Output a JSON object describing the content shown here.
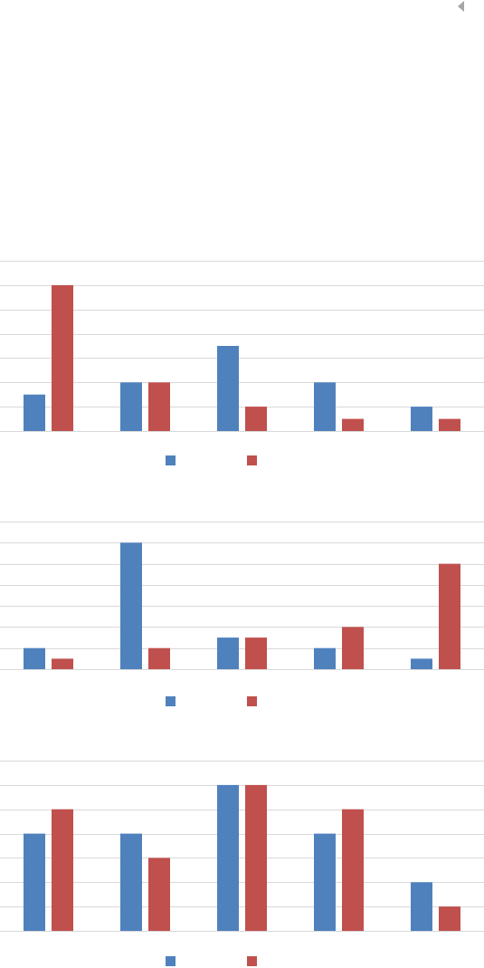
{
  "ui": {
    "collapse_arrow_icon": "caret-left-icon",
    "arrow_color": "#a6a6a6"
  },
  "colors": {
    "series_1": "#4f81bd",
    "series_2": "#c0504d",
    "gridline": "#d9d9d9"
  },
  "chart_data": [
    {
      "type": "bar",
      "categories": [
        "",
        "",
        "",
        "",
        ""
      ],
      "ylim": [
        0,
        7
      ],
      "grid": true,
      "legend": "bottom",
      "series": [
        {
          "values": [
            1.5,
            2,
            3.5,
            2,
            1
          ]
        },
        {
          "values": [
            6,
            2,
            1,
            0.5,
            0.5
          ]
        }
      ]
    },
    {
      "type": "bar",
      "categories": [
        "",
        "",
        "",
        "",
        ""
      ],
      "ylim": [
        0,
        7
      ],
      "grid": true,
      "legend": "bottom",
      "series": [
        {
          "values": [
            1,
            6,
            1.5,
            1,
            0.5
          ]
        },
        {
          "values": [
            0.5,
            1,
            1.5,
            2,
            5
          ]
        }
      ]
    },
    {
      "type": "bar",
      "categories": [
        "",
        "",
        "",
        "",
        ""
      ],
      "ylim": [
        0,
        7
      ],
      "grid": true,
      "legend": "bottom",
      "series": [
        {
          "values": [
            4,
            4,
            6,
            4,
            2
          ]
        },
        {
          "values": [
            5,
            3,
            6,
            5,
            1
          ]
        }
      ]
    }
  ]
}
